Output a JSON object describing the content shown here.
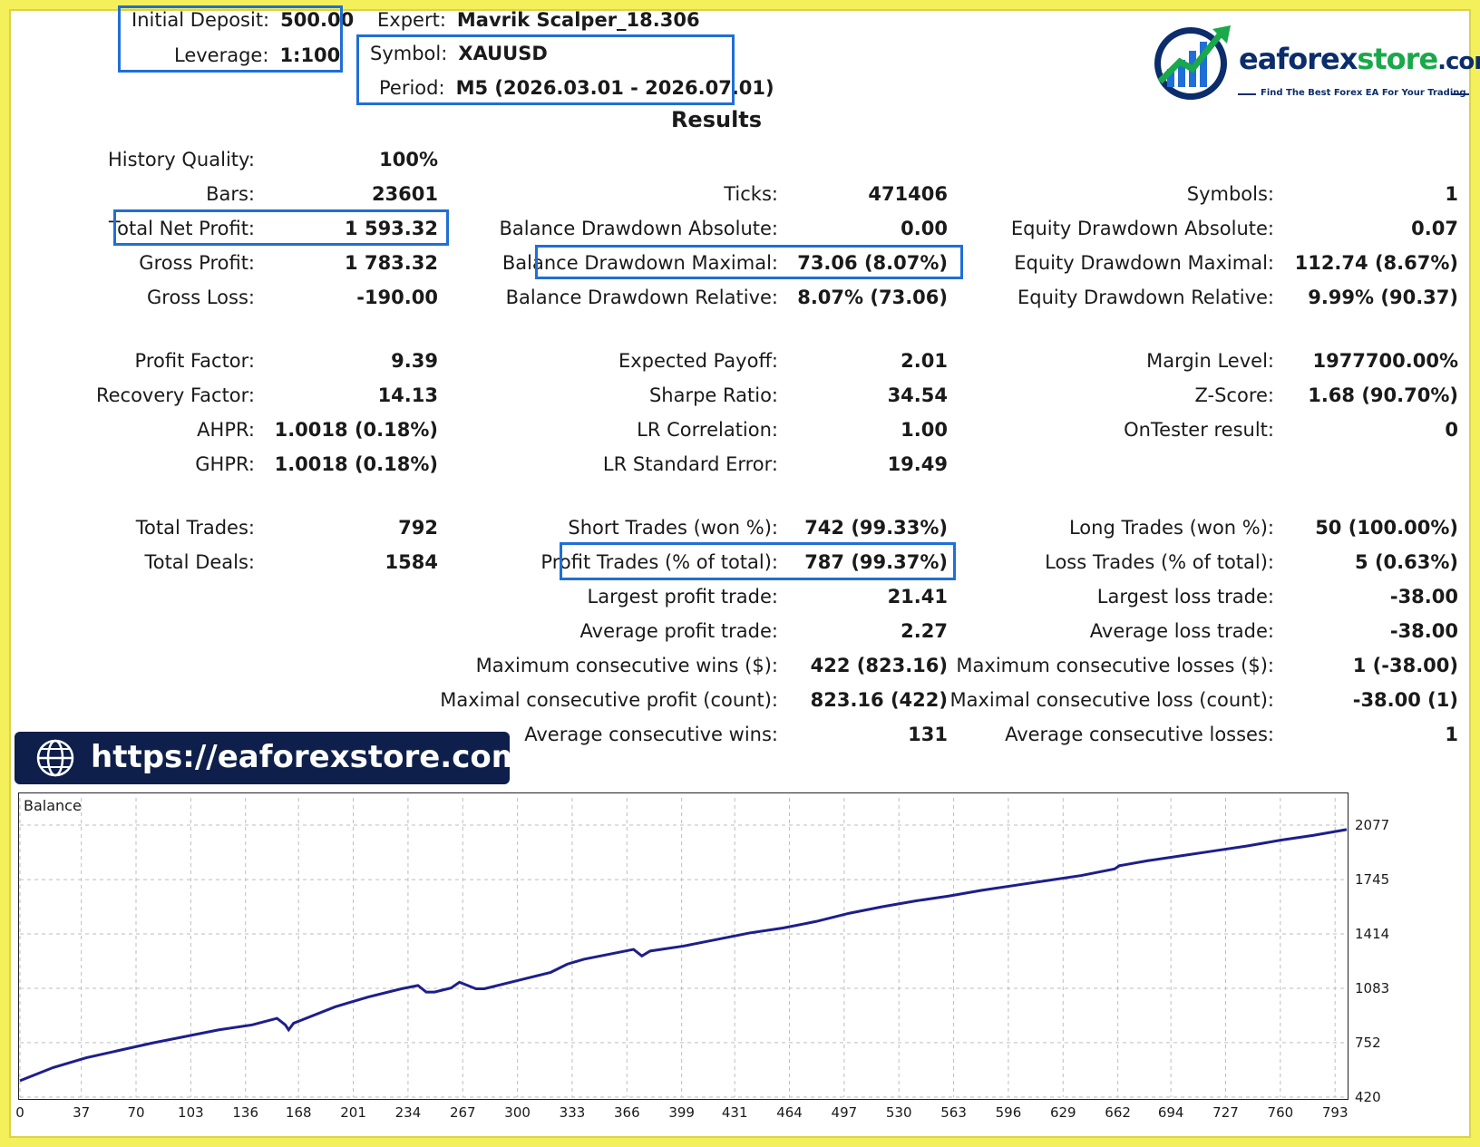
{
  "header": {
    "initial_deposit_label": "Initial Deposit:",
    "initial_deposit_value": "500.00",
    "leverage_label": "Leverage:",
    "leverage_value": "1:100",
    "expert_label": "Expert:",
    "expert_value": "Mavrik Scalper_18.306",
    "symbol_label": "Symbol:",
    "symbol_value": "XAUUSD",
    "period_label": "Period:",
    "period_value": "M5 (2026.03.01 - 2026.07.01)"
  },
  "logo": {
    "brand_prefix": "eaforex",
    "brand_highlight": "store",
    "brand_suffix": ".com",
    "tagline": "Find The Best Forex EA For Your Trading"
  },
  "results_title": "Results",
  "col1": [
    {
      "label": "History Quality:",
      "value": "100%"
    },
    {
      "label": "Bars:",
      "value": "23601"
    },
    {
      "label": "Total Net Profit:",
      "value": "1 593.32"
    },
    {
      "label": "Gross Profit:",
      "value": "1 783.32"
    },
    {
      "label": "Gross Loss:",
      "value": "-190.00"
    },
    {
      "label": "Profit Factor:",
      "value": "9.39"
    },
    {
      "label": "Recovery Factor:",
      "value": "14.13"
    },
    {
      "label": "AHPR:",
      "value": "1.0018 (0.18%)"
    },
    {
      "label": "GHPR:",
      "value": "1.0018 (0.18%)"
    },
    {
      "label": "Total Trades:",
      "value": "792"
    },
    {
      "label": "Total Deals:",
      "value": "1584"
    }
  ],
  "col2": [
    {
      "label": "Ticks:",
      "value": "471406"
    },
    {
      "label": "Balance Drawdown Absolute:",
      "value": "0.00"
    },
    {
      "label": "Balance Drawdown Maximal:",
      "value": "73.06 (8.07%)"
    },
    {
      "label": "Balance Drawdown Relative:",
      "value": "8.07% (73.06)"
    },
    {
      "label": "Expected Payoff:",
      "value": "2.01"
    },
    {
      "label": "Sharpe Ratio:",
      "value": "34.54"
    },
    {
      "label": "LR Correlation:",
      "value": "1.00"
    },
    {
      "label": "LR Standard Error:",
      "value": "19.49"
    },
    {
      "label": "Short Trades (won %):",
      "value": "742 (99.33%)"
    },
    {
      "label": "Profit Trades (% of total):",
      "value": "787 (99.37%)"
    },
    {
      "label": "Largest profit trade:",
      "value": "21.41"
    },
    {
      "label": "Average profit trade:",
      "value": "2.27"
    },
    {
      "label": "Maximum consecutive wins ($):",
      "value": "422 (823.16)"
    },
    {
      "label": "Maximal consecutive profit (count):",
      "value": "823.16 (422)"
    },
    {
      "label": "Average consecutive wins:",
      "value": "131"
    }
  ],
  "col3": [
    {
      "label": "Symbols:",
      "value": "1"
    },
    {
      "label": "Equity Drawdown Absolute:",
      "value": "0.07"
    },
    {
      "label": "Equity Drawdown Maximal:",
      "value": "112.74 (8.67%)"
    },
    {
      "label": "Equity Drawdown Relative:",
      "value": "9.99% (90.37)"
    },
    {
      "label": "Margin Level:",
      "value": "1977700.00%"
    },
    {
      "label": "Z-Score:",
      "value": "1.68 (90.70%)"
    },
    {
      "label": "OnTester result:",
      "value": "0"
    },
    {
      "label": "Long Trades (won %):",
      "value": "50 (100.00%)"
    },
    {
      "label": "Loss Trades (% of total):",
      "value": "5 (0.63%)"
    },
    {
      "label": "Largest loss trade:",
      "value": "-38.00"
    },
    {
      "label": "Average loss trade:",
      "value": "-38.00"
    },
    {
      "label": "Maximum consecutive losses ($):",
      "value": "1 (-38.00)"
    },
    {
      "label": "Maximal consecutive loss (count):",
      "value": "-38.00 (1)"
    },
    {
      "label": "Average consecutive losses:",
      "value": "1"
    }
  ],
  "url_banner": {
    "text": "https://eaforexstore.com/",
    "icon": "globe-icon"
  },
  "colors": {
    "highlight": "#1f6fd6",
    "line": "#1e1e8c",
    "banner": "#0d1f4a",
    "frame": "#f4f05c"
  },
  "chart_data": {
    "type": "line",
    "title": "Balance",
    "x_ticks": [
      "0",
      "37",
      "70",
      "103",
      "136",
      "168",
      "201",
      "234",
      "267",
      "300",
      "333",
      "366",
      "399",
      "431",
      "464",
      "497",
      "530",
      "563",
      "596",
      "629",
      "662",
      "694",
      "727",
      "760",
      "793"
    ],
    "y_ticks": [
      "2077",
      "1745",
      "1414",
      "1083",
      "752",
      "420"
    ],
    "ylim": [
      420,
      2077
    ],
    "xlim": [
      0,
      800
    ],
    "grid": true,
    "series": [
      {
        "values_x": [
          0,
          20,
          40,
          60,
          80,
          100,
          120,
          140,
          155,
          160,
          162,
          165,
          170,
          190,
          210,
          230,
          240,
          245,
          250,
          260,
          265,
          270,
          275,
          280,
          300,
          320,
          330,
          340,
          360,
          370,
          375,
          380,
          400,
          420,
          440,
          460,
          480,
          500,
          520,
          540,
          560,
          580,
          600,
          620,
          640,
          660,
          663,
          666,
          680,
          700,
          720,
          740,
          760,
          780,
          800
        ],
        "values_y": [
          520,
          600,
          660,
          705,
          750,
          790,
          830,
          860,
          900,
          860,
          830,
          870,
          890,
          970,
          1030,
          1080,
          1100,
          1060,
          1060,
          1085,
          1120,
          1100,
          1080,
          1080,
          1130,
          1180,
          1230,
          1260,
          1300,
          1320,
          1280,
          1310,
          1340,
          1380,
          1420,
          1450,
          1490,
          1540,
          1580,
          1615,
          1645,
          1680,
          1710,
          1740,
          1770,
          1810,
          1830,
          1835,
          1860,
          1890,
          1920,
          1950,
          1985,
          2015,
          2050
        ]
      }
    ]
  }
}
